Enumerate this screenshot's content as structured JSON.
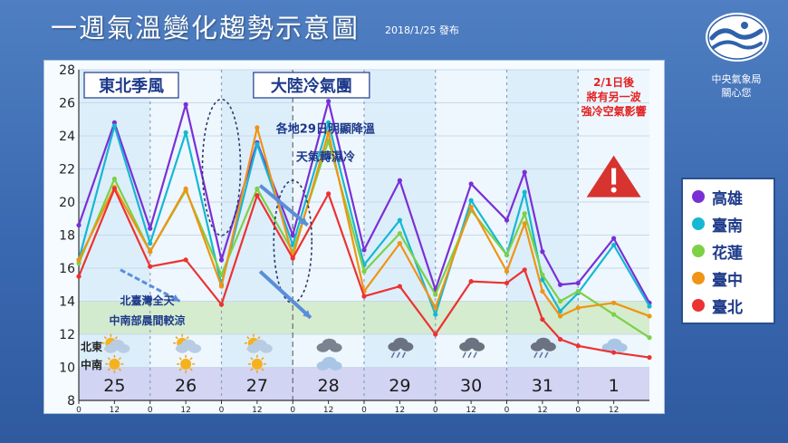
{
  "header": {
    "title": "一週氣溫變化趨勢示意圖",
    "issued": "2018/1/25 發布",
    "agency_line1": "中央氣象局",
    "agency_line2": "關心您"
  },
  "colors": {
    "高雄": "#7a2fd6",
    "臺南": "#16b7d2",
    "花蓮": "#7cd145",
    "臺中": "#ef9415",
    "臺北": "#ec3232",
    "title_blue": "#1d3a8a",
    "warning_red": "#e22222"
  },
  "labels": {
    "ne_monsoon": "東北季風",
    "continental": "大陸冷氣團",
    "note_drop_1": "各地29日明顯降溫",
    "note_drop_2": "天氣轉濕冷",
    "note_north_1": "北臺灣全天",
    "note_north_2": "中南部晨間較涼",
    "warn_1": "2/1日後",
    "warn_2": "將有另一波",
    "warn_3": "強冷空氣影響",
    "row_north": "北東",
    "row_south": "中南"
  },
  "icons": {
    "north": [
      "partly-cloudy-icon",
      "partly-cloudy-icon",
      "partly-cloudy-icon",
      "cloudy-icon",
      "rain-icon",
      "rain-icon",
      "rain-icon",
      "cloudy-icon"
    ],
    "south": [
      "sun-icon",
      "sun-icon",
      "sun-icon",
      "cloud-icon",
      "",
      "",
      "",
      ""
    ],
    "warning": "warning-triangle-icon"
  },
  "chart_data": {
    "type": "line",
    "days": [
      "25",
      "26",
      "27",
      "28",
      "29",
      "30",
      "31",
      "1"
    ],
    "x_tick_labels": [
      "0",
      "12"
    ],
    "ylim": [
      8,
      28
    ],
    "yticks": [
      8,
      10,
      12,
      14,
      16,
      18,
      20,
      22,
      24,
      26,
      28
    ],
    "x": [
      0,
      12,
      24,
      36,
      48,
      60,
      72,
      84,
      96,
      108,
      120,
      132,
      144,
      150,
      156,
      162,
      168,
      180,
      192
    ],
    "series": [
      {
        "name": "高雄",
        "values": [
          18.6,
          24.8,
          18.4,
          25.9,
          16.5,
          23.6,
          18.0,
          26.1,
          17.1,
          21.3,
          14.7,
          21.1,
          18.9,
          21.8,
          17.0,
          15.0,
          15.1,
          17.8,
          13.9
        ]
      },
      {
        "name": "臺南",
        "values": [
          16.5,
          24.6,
          17.5,
          24.2,
          15.0,
          23.5,
          17.4,
          24.8,
          16.2,
          18.9,
          13.2,
          20.1,
          16.8,
          20.6,
          15.3,
          13.4,
          14.5,
          17.4,
          13.7
        ]
      },
      {
        "name": "花蓮",
        "values": [
          16.3,
          21.4,
          17.0,
          20.7,
          15.6,
          20.8,
          17.0,
          23.7,
          15.8,
          18.1,
          14.4,
          19.5,
          16.8,
          19.3,
          15.6,
          14.0,
          14.6,
          13.2,
          11.8
        ]
      },
      {
        "name": "臺中",
        "values": [
          16.5,
          20.9,
          17.0,
          20.8,
          14.9,
          24.5,
          16.7,
          24.2,
          14.6,
          17.5,
          13.6,
          19.7,
          15.8,
          18.7,
          14.6,
          13.1,
          13.6,
          13.9,
          13.1
        ]
      },
      {
        "name": "臺北",
        "values": [
          15.5,
          20.8,
          16.1,
          16.5,
          13.8,
          20.4,
          16.6,
          20.5,
          14.3,
          14.9,
          12.0,
          15.2,
          15.1,
          15.9,
          12.9,
          11.7,
          11.3,
          10.9,
          10.6
        ]
      }
    ]
  }
}
